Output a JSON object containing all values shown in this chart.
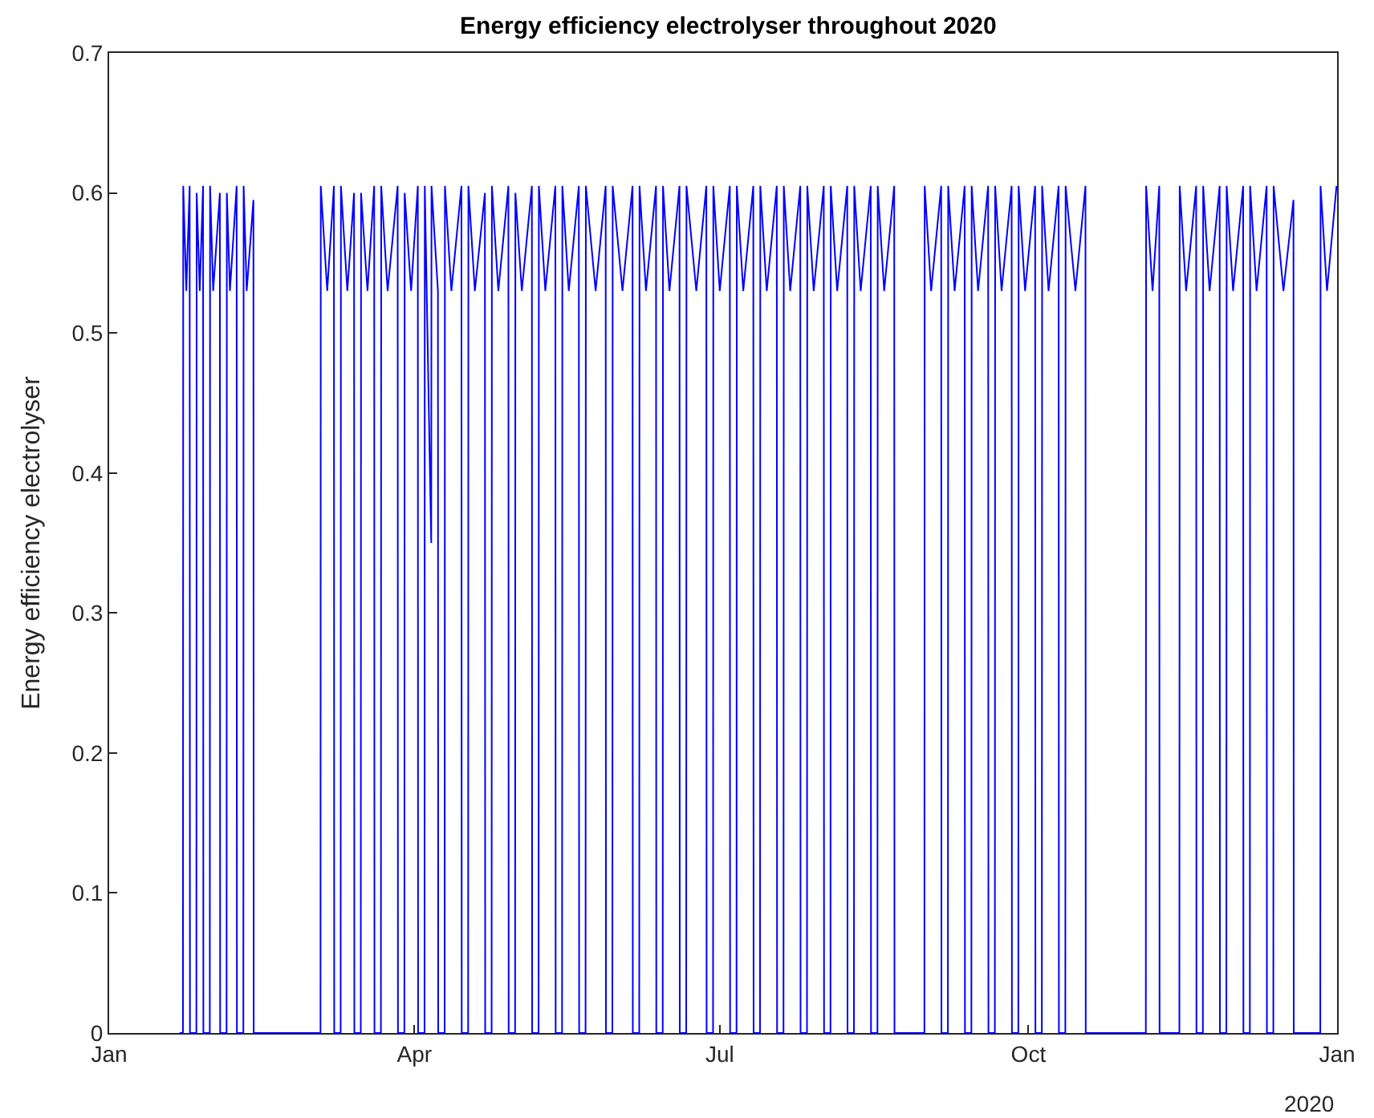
{
  "chart_data": {
    "type": "line",
    "title": "Energy efficiency electrolyser throughout 2020",
    "ylabel": "Energy efficiency electrolyser",
    "xlim": [
      "2020-01-01",
      "2021-01-01"
    ],
    "xticks": [
      {
        "value": "2020-01-01",
        "label": "Jan"
      },
      {
        "value": "2020-04-01",
        "label": "Apr"
      },
      {
        "value": "2020-07-01",
        "label": "Jul"
      },
      {
        "value": "2020-10-01",
        "label": "Oct"
      },
      {
        "value": "2021-01-01",
        "label": "Jan"
      }
    ],
    "ylim": [
      0,
      0.7
    ],
    "yticks": [
      0,
      0.1,
      0.2,
      0.3,
      0.4,
      0.5,
      0.6,
      0.7
    ],
    "marker": "none",
    "line_style": "solid",
    "annotations": [
      "2020"
    ],
    "series": [
      {
        "color": "#0000ff",
        "x": [
          "2020-01-22",
          "2020-01-23",
          "2020-01-23T02:00",
          "2020-01-24",
          "2020-01-25",
          "2020-01-25T02:00",
          "2020-01-27",
          "2020-01-27T02:00",
          "2020-01-28",
          "2020-01-29",
          "2020-01-29T02:00",
          "2020-01-31",
          "2020-01-31T02:00",
          "2020-02-01",
          "2020-02-03",
          "2020-02-03T02:00",
          "2020-02-05",
          "2020-02-05T02:00",
          "2020-02-06",
          "2020-02-08",
          "2020-02-08T02:00",
          "2020-02-10",
          "2020-02-10T02:00",
          "2020-02-11",
          "2020-02-13",
          "2020-02-13T02:00",
          "2020-03-04",
          "2020-03-04T02:00",
          "2020-03-06",
          "2020-03-08",
          "2020-03-08T02:00",
          "2020-03-10",
          "2020-03-10T02:00",
          "2020-03-12",
          "2020-03-14",
          "2020-03-14T02:00",
          "2020-03-16",
          "2020-03-16T02:00",
          "2020-03-18",
          "2020-03-20",
          "2020-03-20T02:00",
          "2020-03-22",
          "2020-03-22T02:00",
          "2020-03-24",
          "2020-03-27",
          "2020-03-27T02:00",
          "2020-03-29",
          "2020-03-29T02:00",
          "2020-03-31",
          "2020-04-02",
          "2020-04-02T02:00",
          "2020-04-04",
          "2020-04-04T02:00",
          "2020-04-06",
          "2020-04-06T02:00",
          "2020-04-08",
          "2020-04-08T02:00",
          "2020-04-10",
          "2020-04-10T02:00",
          "2020-04-12",
          "2020-04-15",
          "2020-04-15T02:00",
          "2020-04-17",
          "2020-04-17T02:00",
          "2020-04-19",
          "2020-04-22",
          "2020-04-22T02:00",
          "2020-04-24",
          "2020-04-24T02:00",
          "2020-04-26",
          "2020-04-29",
          "2020-04-29T02:00",
          "2020-05-01",
          "2020-05-01T02:00",
          "2020-05-03",
          "2020-05-06",
          "2020-05-06T02:00",
          "2020-05-08",
          "2020-05-08T02:00",
          "2020-05-10",
          "2020-05-13",
          "2020-05-13T02:00",
          "2020-05-15",
          "2020-05-15T02:00",
          "2020-05-17",
          "2020-05-20",
          "2020-05-20T02:00",
          "2020-05-22",
          "2020-05-22T02:00",
          "2020-05-25",
          "2020-05-28",
          "2020-05-28T02:00",
          "2020-05-30",
          "2020-05-30T02:00",
          "2020-06-02",
          "2020-06-05",
          "2020-06-05T02:00",
          "2020-06-07",
          "2020-06-07T02:00",
          "2020-06-09",
          "2020-06-12",
          "2020-06-12T02:00",
          "2020-06-14",
          "2020-06-14T02:00",
          "2020-06-16",
          "2020-06-19",
          "2020-06-19T02:00",
          "2020-06-21",
          "2020-06-21T02:00",
          "2020-06-24",
          "2020-06-27",
          "2020-06-27T02:00",
          "2020-06-29",
          "2020-06-29T02:00",
          "2020-07-01",
          "2020-07-04",
          "2020-07-04T02:00",
          "2020-07-06",
          "2020-07-06T02:00",
          "2020-07-08",
          "2020-07-11",
          "2020-07-11T02:00",
          "2020-07-13",
          "2020-07-13T02:00",
          "2020-07-15",
          "2020-07-18",
          "2020-07-18T02:00",
          "2020-07-20",
          "2020-07-20T02:00",
          "2020-07-22",
          "2020-07-25",
          "2020-07-25T02:00",
          "2020-07-27",
          "2020-07-27T02:00",
          "2020-07-29",
          "2020-08-01",
          "2020-08-01T02:00",
          "2020-08-03",
          "2020-08-03T02:00",
          "2020-08-05",
          "2020-08-08",
          "2020-08-08T02:00",
          "2020-08-10",
          "2020-08-10T02:00",
          "2020-08-12",
          "2020-08-15",
          "2020-08-15T02:00",
          "2020-08-17",
          "2020-08-17T02:00",
          "2020-08-19",
          "2020-08-22",
          "2020-08-22T02:00",
          "2020-08-31",
          "2020-08-31T02:00",
          "2020-09-02",
          "2020-09-05",
          "2020-09-05T02:00",
          "2020-09-07",
          "2020-09-07T02:00",
          "2020-09-09",
          "2020-09-12",
          "2020-09-12T02:00",
          "2020-09-14",
          "2020-09-14T02:00",
          "2020-09-16",
          "2020-09-19",
          "2020-09-19T02:00",
          "2020-09-21",
          "2020-09-21T02:00",
          "2020-09-23",
          "2020-09-26",
          "2020-09-26T02:00",
          "2020-09-28",
          "2020-09-28T02:00",
          "2020-09-30",
          "2020-10-03",
          "2020-10-03T02:00",
          "2020-10-05",
          "2020-10-05T02:00",
          "2020-10-07",
          "2020-10-10",
          "2020-10-10T02:00",
          "2020-10-12",
          "2020-10-12T02:00",
          "2020-10-15",
          "2020-10-18",
          "2020-10-18T02:00",
          "2020-11-05",
          "2020-11-05T02:00",
          "2020-11-07",
          "2020-11-09",
          "2020-11-09T02:00",
          "2020-11-15",
          "2020-11-15T02:00",
          "2020-11-17",
          "2020-11-20",
          "2020-11-20T02:00",
          "2020-11-22",
          "2020-11-22T02:00",
          "2020-11-24",
          "2020-11-27",
          "2020-11-27T02:00",
          "2020-11-29",
          "2020-11-29T02:00",
          "2020-12-01",
          "2020-12-04",
          "2020-12-04T02:00",
          "2020-12-06",
          "2020-12-06T02:00",
          "2020-12-08",
          "2020-12-11",
          "2020-12-11T02:00",
          "2020-12-13",
          "2020-12-13T02:00",
          "2020-12-16",
          "2020-12-19",
          "2020-12-19T02:00",
          "2020-12-27",
          "2020-12-27T02:00",
          "2020-12-29",
          "2020-12-31T20:00"
        ],
        "values": [
          0,
          0,
          0.605,
          0.53,
          0.605,
          0,
          0,
          0.6,
          0.53,
          0.605,
          0,
          0,
          0.605,
          0.53,
          0.6,
          0,
          0,
          0.6,
          0.53,
          0.605,
          0,
          0,
          0.605,
          0.53,
          0.595,
          0,
          0,
          0.605,
          0.53,
          0.605,
          0,
          0,
          0.605,
          0.53,
          0.6,
          0,
          0,
          0.6,
          0.53,
          0.605,
          0,
          0,
          0.605,
          0.53,
          0.605,
          0,
          0,
          0.6,
          0.53,
          0.605,
          0,
          0,
          0.605,
          0.35,
          0.605,
          0.53,
          0,
          0,
          0.605,
          0.53,
          0.605,
          0,
          0,
          0.605,
          0.53,
          0.6,
          0,
          0,
          0.605,
          0.53,
          0.605,
          0,
          0,
          0.6,
          0.53,
          0.605,
          0,
          0,
          0.605,
          0.53,
          0.605,
          0,
          0,
          0.605,
          0.53,
          0.605,
          0,
          0,
          0.605,
          0.53,
          0.605,
          0,
          0,
          0.605,
          0.53,
          0.605,
          0,
          0,
          0.605,
          0.53,
          0.605,
          0,
          0,
          0.605,
          0.53,
          0.605,
          0,
          0,
          0.605,
          0.53,
          0.605,
          0,
          0,
          0.605,
          0.53,
          0.605,
          0,
          0,
          0.605,
          0.53,
          0.605,
          0,
          0,
          0.605,
          0.53,
          0.605,
          0,
          0,
          0.605,
          0.53,
          0.605,
          0,
          0,
          0.605,
          0.53,
          0.605,
          0,
          0,
          0.605,
          0.53,
          0.605,
          0,
          0,
          0.605,
          0.53,
          0.605,
          0,
          0,
          0.605,
          0.53,
          0.605,
          0,
          0,
          0.605,
          0.53,
          0.605,
          0,
          0,
          0.605,
          0.53,
          0.605,
          0,
          0,
          0.605,
          0.53,
          0.605,
          0,
          0,
          0.605,
          0.53,
          0.605,
          0,
          0,
          0.605,
          0.53,
          0.605,
          0,
          0,
          0.605,
          0.53,
          0.605,
          0,
          0,
          0.605,
          0.53,
          0.605,
          0,
          0,
          0.605,
          0.53,
          0.605,
          0,
          0,
          0.605,
          0.53,
          0.605,
          0,
          0,
          0.605,
          0.53,
          0.605,
          0,
          0,
          0.605,
          0.53,
          0.605,
          0,
          0,
          0.605,
          0.53,
          0.605,
          0,
          0,
          0.605,
          0.53,
          0.595,
          0,
          0,
          0.605,
          0.53,
          0.605
        ]
      }
    ]
  }
}
